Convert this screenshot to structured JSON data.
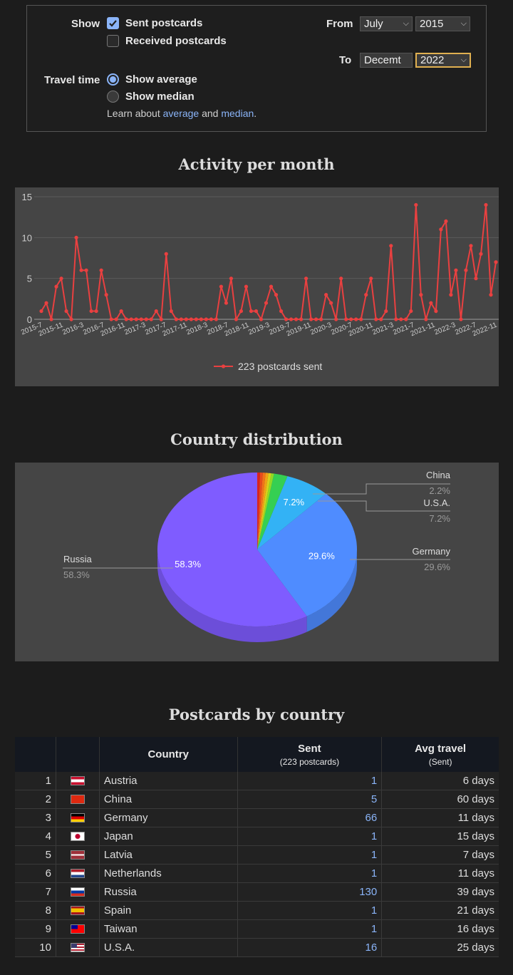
{
  "filters": {
    "show_label": "Show",
    "sent_label": "Sent postcards",
    "received_label": "Received postcards",
    "travel_label": "Travel time",
    "average_label": "Show average",
    "median_label": "Show median",
    "learn_prefix": "Learn about",
    "learn_average": "average",
    "learn_and": "and",
    "learn_median": "median",
    "learn_suffix": ".",
    "from_label": "From",
    "to_label": "To",
    "from_month": "July",
    "from_year": "2015",
    "to_month": "Decemt",
    "to_year": "2022"
  },
  "activity": {
    "title": "Activity per month"
  },
  "country_dist": {
    "title": "Country distribution"
  },
  "table": {
    "title": "Postcards by country",
    "col_country": "Country",
    "col_sent": "Sent",
    "col_sent_sub": "(223 postcards)",
    "col_avg": "Avg travel",
    "col_avg_sub": "(Sent)",
    "rows": [
      {
        "rank": "1",
        "country": "Austria",
        "sent": "1",
        "avg": "6 days",
        "flag": "austria"
      },
      {
        "rank": "2",
        "country": "China",
        "sent": "5",
        "avg": "60 days",
        "flag": "china"
      },
      {
        "rank": "3",
        "country": "Germany",
        "sent": "66",
        "avg": "11 days",
        "flag": "germany"
      },
      {
        "rank": "4",
        "country": "Japan",
        "sent": "1",
        "avg": "15 days",
        "flag": "japan"
      },
      {
        "rank": "5",
        "country": "Latvia",
        "sent": "1",
        "avg": "7 days",
        "flag": "latvia"
      },
      {
        "rank": "6",
        "country": "Netherlands",
        "sent": "1",
        "avg": "11 days",
        "flag": "netherlands"
      },
      {
        "rank": "7",
        "country": "Russia",
        "sent": "130",
        "avg": "39 days",
        "flag": "russia"
      },
      {
        "rank": "8",
        "country": "Spain",
        "sent": "1",
        "avg": "21 days",
        "flag": "spain"
      },
      {
        "rank": "9",
        "country": "Taiwan",
        "sent": "1",
        "avg": "16 days",
        "flag": "taiwan"
      },
      {
        "rank": "10",
        "country": "U.S.A.",
        "sent": "16",
        "avg": "25 days",
        "flag": "usa"
      }
    ]
  },
  "chart_data": [
    {
      "type": "line",
      "title": "Activity per month",
      "x_tick_labels": [
        "2015-7",
        "2015-11",
        "2016-3",
        "2016-7",
        "2016-11",
        "2017-3",
        "2017-7",
        "2017-11",
        "2018-3",
        "2018-7",
        "2018-11",
        "2019-3",
        "2019-7",
        "2019-11",
        "2020-3",
        "2020-7",
        "2020-11",
        "2021-3",
        "2021-7",
        "2021-11",
        "2022-3",
        "2022-7",
        "2022-11"
      ],
      "y_ticks": [
        0,
        5,
        10,
        15
      ],
      "ylim": [
        0,
        15
      ],
      "series": [
        {
          "name": "223 postcards sent",
          "values": [
            1,
            2,
            0,
            4,
            5,
            1,
            0,
            10,
            6,
            6,
            1,
            1,
            6,
            3,
            0,
            0,
            1,
            0,
            0,
            0,
            0,
            0,
            0,
            1,
            0,
            8,
            1,
            0,
            0,
            0,
            0,
            0,
            0,
            0,
            0,
            0,
            4,
            2,
            5,
            0,
            1,
            4,
            1,
            1,
            0,
            2,
            4,
            3,
            1,
            0,
            0,
            0,
            0,
            5,
            0,
            0,
            0,
            3,
            2,
            0,
            5,
            0,
            0,
            0,
            0,
            3,
            5,
            0,
            0,
            1,
            9,
            0,
            0,
            0,
            1,
            14,
            3,
            0,
            2,
            1,
            11,
            12,
            3,
            6,
            0,
            6,
            9,
            5,
            8,
            14,
            3,
            7
          ]
        }
      ],
      "legend": "bottom",
      "grid": true,
      "color": "#e94040"
    },
    {
      "type": "pie",
      "title": "Country distribution",
      "categories": [
        "Russia",
        "Germany",
        "U.S.A.",
        "China",
        "Austria",
        "Japan",
        "Latvia",
        "Netherlands",
        "Spain",
        "Taiwan"
      ],
      "values": [
        58.3,
        29.6,
        7.2,
        2.2,
        0.45,
        0.45,
        0.45,
        0.45,
        0.45,
        0.45
      ],
      "labels": [
        "58.3%",
        "29.6%",
        "7.2%",
        "2.2%"
      ],
      "colors": [
        "#7f5cff",
        "#4f8cff",
        "#33b2f5",
        "#35cf52",
        "#8fdc24",
        "#d7d11a",
        "#f0a114",
        "#f07418",
        "#e84b1c",
        "#d9241f"
      ]
    }
  ]
}
